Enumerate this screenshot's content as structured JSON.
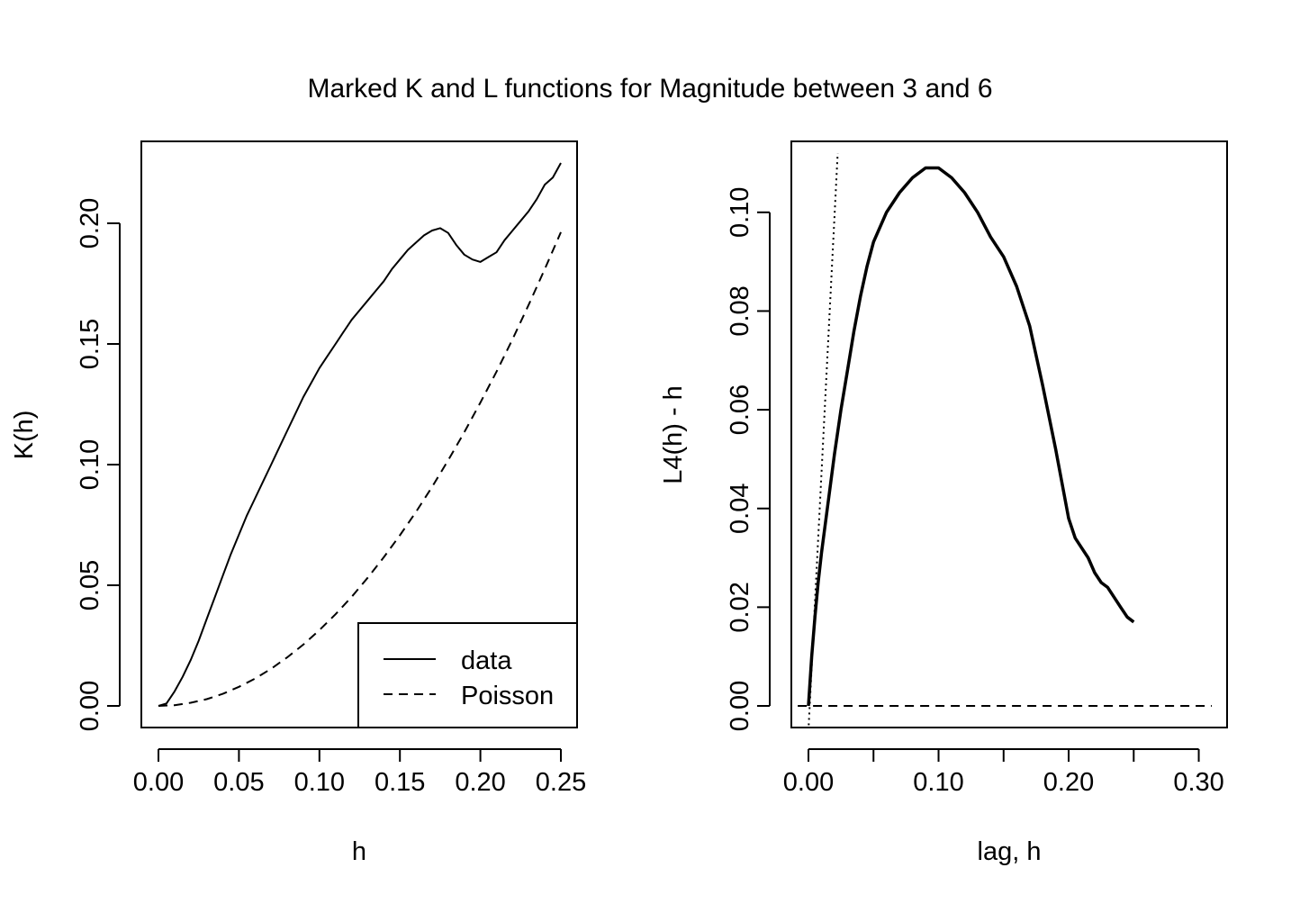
{
  "title": "Marked K and L functions for Magnitude between 3 and 6",
  "chart_data": [
    {
      "type": "line",
      "xlabel": "h",
      "ylabel": "K(h)",
      "xlim": [
        0,
        0.25
      ],
      "ylim": [
        0,
        0.225
      ],
      "xticks": [
        0,
        0.05,
        0.1,
        0.15,
        0.2,
        0.25
      ],
      "xtick_labels": [
        "0.00",
        "0.05",
        "0.10",
        "0.15",
        "0.20",
        "0.25"
      ],
      "yticks": [
        0,
        0.05,
        0.1,
        0.15,
        0.2
      ],
      "ytick_labels": [
        "0.00",
        "0.05",
        "0.10",
        "0.15",
        "0.20"
      ],
      "legend_position": "bottom-right",
      "series": [
        {
          "name": "data",
          "linestyle": "solid",
          "x": [
            0.0,
            0.005,
            0.01,
            0.015,
            0.02,
            0.025,
            0.03,
            0.035,
            0.04,
            0.045,
            0.05,
            0.055,
            0.06,
            0.065,
            0.07,
            0.075,
            0.08,
            0.085,
            0.09,
            0.095,
            0.1,
            0.105,
            0.11,
            0.115,
            0.12,
            0.125,
            0.13,
            0.135,
            0.14,
            0.145,
            0.15,
            0.155,
            0.16,
            0.165,
            0.17,
            0.175,
            0.18,
            0.185,
            0.19,
            0.195,
            0.2,
            0.205,
            0.21,
            0.215,
            0.22,
            0.225,
            0.23,
            0.235,
            0.24,
            0.245,
            0.25
          ],
          "y": [
            0.0,
            0.001,
            0.006,
            0.012,
            0.019,
            0.027,
            0.036,
            0.045,
            0.054,
            0.063,
            0.071,
            0.079,
            0.086,
            0.093,
            0.1,
            0.107,
            0.114,
            0.121,
            0.128,
            0.134,
            0.14,
            0.145,
            0.15,
            0.155,
            0.16,
            0.164,
            0.168,
            0.172,
            0.176,
            0.181,
            0.185,
            0.189,
            0.192,
            0.195,
            0.197,
            0.198,
            0.196,
            0.191,
            0.187,
            0.185,
            0.184,
            0.186,
            0.188,
            0.193,
            0.197,
            0.201,
            0.205,
            0.21,
            0.216,
            0.219,
            0.225
          ]
        },
        {
          "name": "Poisson",
          "linestyle": "dashed",
          "x": [
            0.0,
            0.01,
            0.02,
            0.03,
            0.04,
            0.05,
            0.06,
            0.07,
            0.08,
            0.09,
            0.1,
            0.11,
            0.12,
            0.13,
            0.14,
            0.15,
            0.16,
            0.17,
            0.18,
            0.19,
            0.2,
            0.21,
            0.22,
            0.23,
            0.24,
            0.25
          ],
          "y": [
            0.0,
            0.0003,
            0.0013,
            0.0028,
            0.005,
            0.0079,
            0.0113,
            0.0154,
            0.0201,
            0.0254,
            0.0314,
            0.038,
            0.0452,
            0.0531,
            0.0616,
            0.0707,
            0.0804,
            0.0908,
            0.1018,
            0.1134,
            0.1257,
            0.1385,
            0.152,
            0.1662,
            0.181,
            0.1963
          ]
        }
      ]
    },
    {
      "type": "line",
      "xlabel": "lag, h",
      "ylabel": "L4(h) - h",
      "xlim": [
        0,
        0.31
      ],
      "ylim": [
        0,
        0.11
      ],
      "xticks": [
        0,
        0.05,
        0.1,
        0.15,
        0.2,
        0.25,
        0.3
      ],
      "xtick_labels": [
        "0.00",
        "",
        "0.10",
        "",
        "0.20",
        "",
        "0.30"
      ],
      "yticks": [
        0,
        0.02,
        0.04,
        0.06,
        0.08,
        0.1
      ],
      "ytick_labels": [
        "0.00",
        "0.02",
        "0.04",
        "0.06",
        "0.08",
        "0.10"
      ],
      "series": [
        {
          "linestyle": "solid-points",
          "x": [
            0.0,
            0.0025,
            0.005,
            0.0075,
            0.01,
            0.015,
            0.02,
            0.025,
            0.03,
            0.035,
            0.04,
            0.045,
            0.05,
            0.06,
            0.07,
            0.08,
            0.09,
            0.1,
            0.11,
            0.12,
            0.13,
            0.14,
            0.15,
            0.16,
            0.17,
            0.18,
            0.19,
            0.195,
            0.2,
            0.205,
            0.21,
            0.215,
            0.22,
            0.225,
            0.23,
            0.235,
            0.24,
            0.245,
            0.25
          ],
          "y": [
            0.0,
            0.01,
            0.018,
            0.025,
            0.031,
            0.041,
            0.051,
            0.06,
            0.068,
            0.076,
            0.083,
            0.089,
            0.094,
            0.1,
            0.104,
            0.107,
            0.109,
            0.109,
            0.107,
            0.104,
            0.1,
            0.095,
            0.091,
            0.085,
            0.077,
            0.065,
            0.052,
            0.045,
            0.038,
            0.034,
            0.032,
            0.03,
            0.027,
            0.025,
            0.024,
            0.022,
            0.02,
            0.018,
            0.017
          ]
        },
        {
          "linestyle": "dotted",
          "x": [
            0.0,
            0.0225
          ],
          "y": [
            -0.005,
            0.112
          ]
        },
        {
          "linestyle": "dashed",
          "x": [
            -0.02,
            0.31
          ],
          "y": [
            0,
            0
          ]
        }
      ]
    }
  ]
}
